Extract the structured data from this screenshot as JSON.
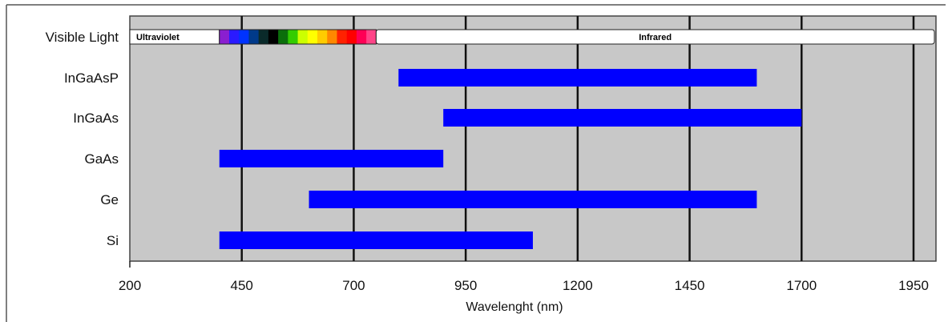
{
  "chart_data": {
    "type": "bar",
    "xlabel": "Wavelenght (nm)",
    "xlim": [
      200,
      2000
    ],
    "xticks": [
      200,
      450,
      700,
      950,
      1200,
      1450,
      1700,
      1950
    ],
    "grid": true,
    "categories": [
      "Visible Light",
      "InGaAsP",
      "InGaAs",
      "GaAs",
      "Ge",
      "Si"
    ],
    "ranges": [
      {
        "category": "InGaAsP",
        "start": 800,
        "end": 1600
      },
      {
        "category": "InGaAs",
        "start": 900,
        "end": 1700
      },
      {
        "category": "GaAs",
        "start": 400,
        "end": 900
      },
      {
        "category": "Ge",
        "start": 600,
        "end": 1600
      },
      {
        "category": "Si",
        "start": 400,
        "end": 1100
      }
    ],
    "spectrum_bands": [
      {
        "label": "Ultraviolet",
        "start": 200,
        "end": 400
      },
      {
        "label": "",
        "start": 400,
        "end": 750
      },
      {
        "label": "Infrared",
        "start": 750,
        "end": 2000
      }
    ],
    "spectrum_colors": [
      "#8a1fd0",
      "#2a1aff",
      "#0033ff",
      "#003a8a",
      "#0a2a2a",
      "#000000",
      "#0b6e0b",
      "#33cc00",
      "#ccff00",
      "#ffff00",
      "#ffcc00",
      "#ff8800",
      "#ff2200",
      "#ff0000",
      "#ff0055",
      "#ff4488"
    ],
    "bar_color": "#0000ff",
    "plot_background": "#c8c8c8"
  }
}
